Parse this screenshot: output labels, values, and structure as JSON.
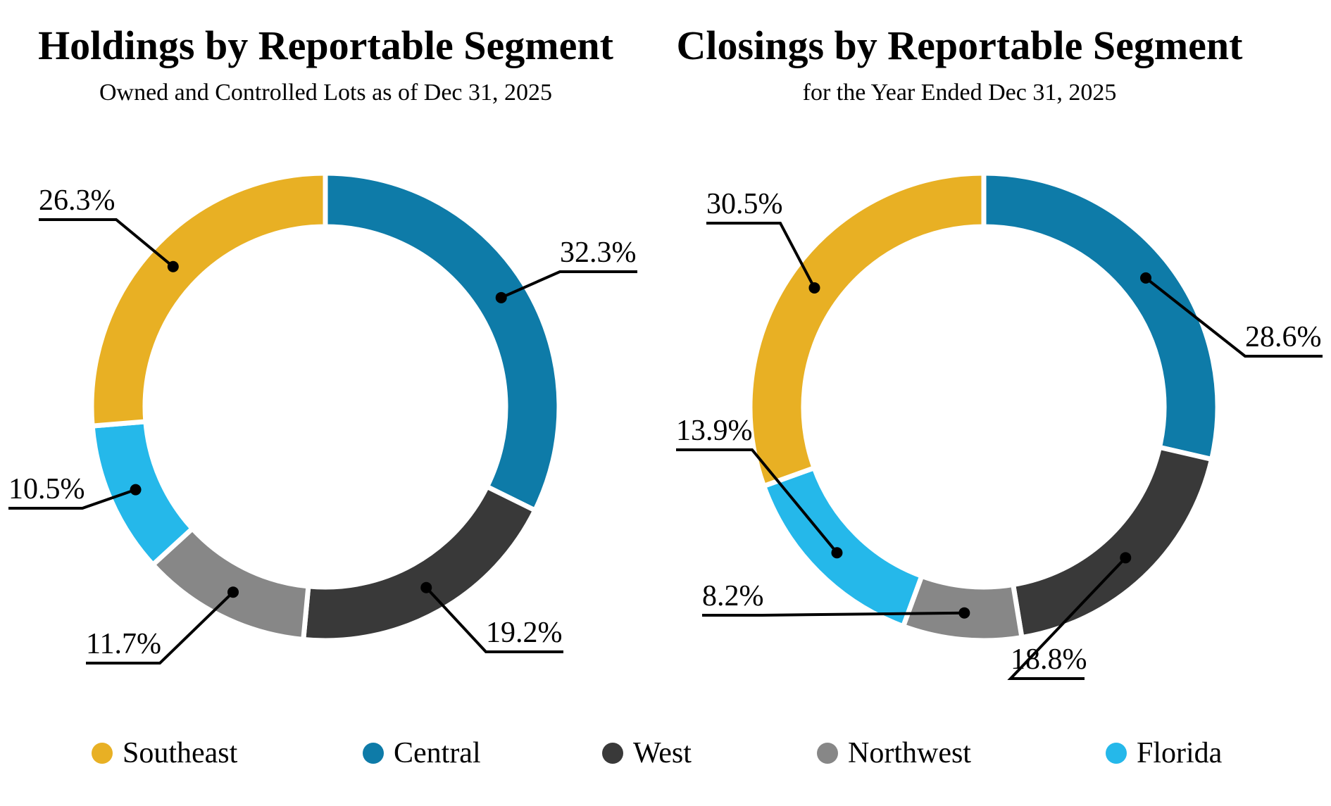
{
  "legend": [
    {
      "label": "Southeast",
      "color": "#E8B024"
    },
    {
      "label": "Central",
      "color": "#0E7BA8"
    },
    {
      "label": "West",
      "color": "#393939"
    },
    {
      "label": "Northwest",
      "color": "#878787"
    },
    {
      "label": "Florida",
      "color": "#25B8EA"
    }
  ],
  "chart_data": [
    {
      "type": "pie",
      "variant": "donut",
      "title": "Holdings by Reportable Segment",
      "subtitle": "Owned and Controlled Lots as of Dec 31, 2025",
      "slices": [
        {
          "category": "Southeast",
          "value": 26.3,
          "label": "26.3%",
          "color": "#E8B024"
        },
        {
          "category": "Central",
          "value": 32.3,
          "label": "32.3%",
          "color": "#0E7BA8"
        },
        {
          "category": "West",
          "value": 19.2,
          "label": "19.2%",
          "color": "#393939"
        },
        {
          "category": "Northwest",
          "value": 11.7,
          "label": "11.7%",
          "color": "#878787"
        },
        {
          "category": "Florida",
          "value": 10.5,
          "label": "10.5%",
          "color": "#25B8EA"
        }
      ]
    },
    {
      "type": "pie",
      "variant": "donut",
      "title": "Closings by Reportable Segment",
      "subtitle": "for the Year Ended Dec 31, 2025",
      "slices": [
        {
          "category": "Southeast",
          "value": 30.5,
          "label": "30.5%",
          "color": "#E8B024"
        },
        {
          "category": "Central",
          "value": 28.6,
          "label": "28.6%",
          "color": "#0E7BA8"
        },
        {
          "category": "West",
          "value": 18.8,
          "label": "18.8%",
          "color": "#393939"
        },
        {
          "category": "Northwest",
          "value": 8.2,
          "label": "8.2%",
          "color": "#878787"
        },
        {
          "category": "Florida",
          "value": 13.9,
          "label": "13.9%",
          "color": "#25B8EA"
        }
      ]
    }
  ]
}
